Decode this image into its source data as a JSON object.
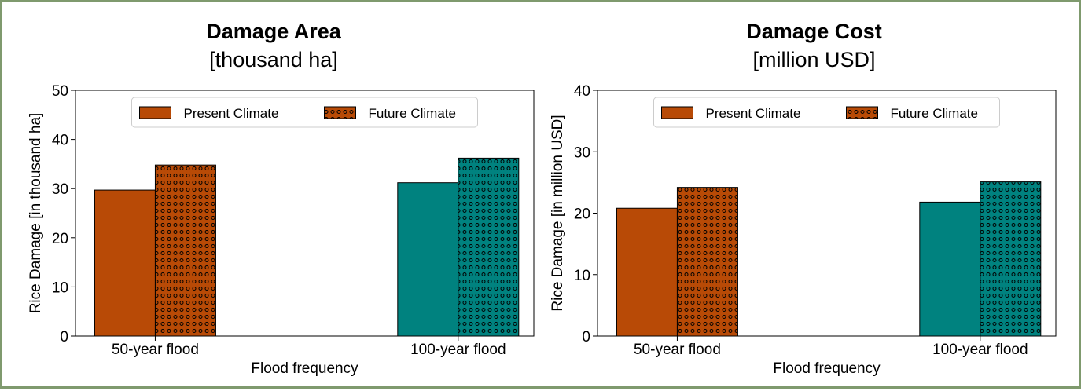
{
  "figure": {
    "border_color": "#7f9a6e"
  },
  "chart_data": [
    {
      "type": "bar",
      "title": "Damage Area",
      "subtitle": "[thousand ha]",
      "xlabel": "Flood frequency",
      "ylabel": "Rice Damage [in thousand ha]",
      "categories": [
        "50-year flood",
        "100-year flood"
      ],
      "ylim": [
        0,
        50
      ],
      "yticks": [
        0,
        10,
        20,
        30,
        40,
        50
      ],
      "series": [
        {
          "name": "Present Climate",
          "values": [
            29.7,
            31.2
          ],
          "pattern": "solid"
        },
        {
          "name": "Future Climate",
          "values": [
            34.8,
            36.2
          ],
          "pattern": "dotted"
        }
      ],
      "category_colors": [
        "#b84a06",
        "#00827f"
      ],
      "legend": "top-center",
      "grid": false
    },
    {
      "type": "bar",
      "title": "Damage Cost",
      "subtitle": "[million USD]",
      "xlabel": "Flood frequency",
      "ylabel": "Rice Damage [in million USD]",
      "categories": [
        "50-year flood",
        "100-year flood"
      ],
      "ylim": [
        0,
        40
      ],
      "yticks": [
        0,
        10,
        20,
        30,
        40
      ],
      "series": [
        {
          "name": "Present Climate",
          "values": [
            20.8,
            21.8
          ],
          "pattern": "solid"
        },
        {
          "name": "Future Climate",
          "values": [
            24.2,
            25.1
          ],
          "pattern": "dotted"
        }
      ],
      "category_colors": [
        "#b84a06",
        "#00827f"
      ],
      "legend": "top-center",
      "grid": false
    }
  ]
}
